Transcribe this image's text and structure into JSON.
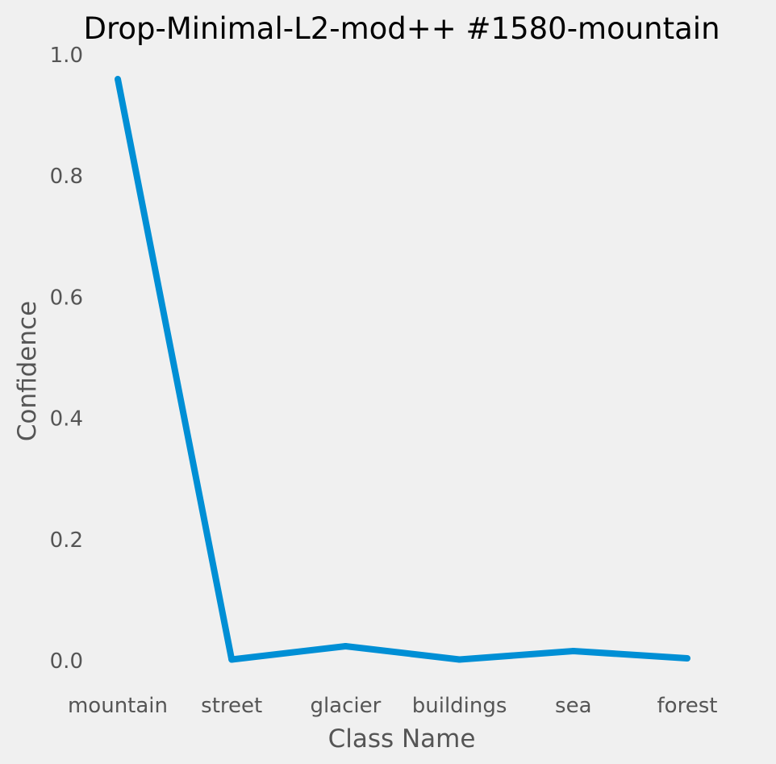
{
  "chart_data": {
    "type": "line",
    "title": "Drop-Minimal-L2-mod++ #1580-mountain",
    "xlabel": "Class Name",
    "ylabel": "Confidence",
    "categories": [
      "mountain",
      "street",
      "glacier",
      "buildings",
      "sea",
      "forest"
    ],
    "series": [
      {
        "values": [
          0.96,
          0.002,
          0.024,
          0.002,
          0.016,
          0.004
        ]
      }
    ],
    "ylim": [
      0,
      1.0
    ],
    "yticks": [
      "0.0",
      "0.2",
      "0.4",
      "0.6",
      "0.8",
      "1.0"
    ],
    "grid": false,
    "line_color": "#008fd5",
    "background": "#f0f0f0"
  }
}
